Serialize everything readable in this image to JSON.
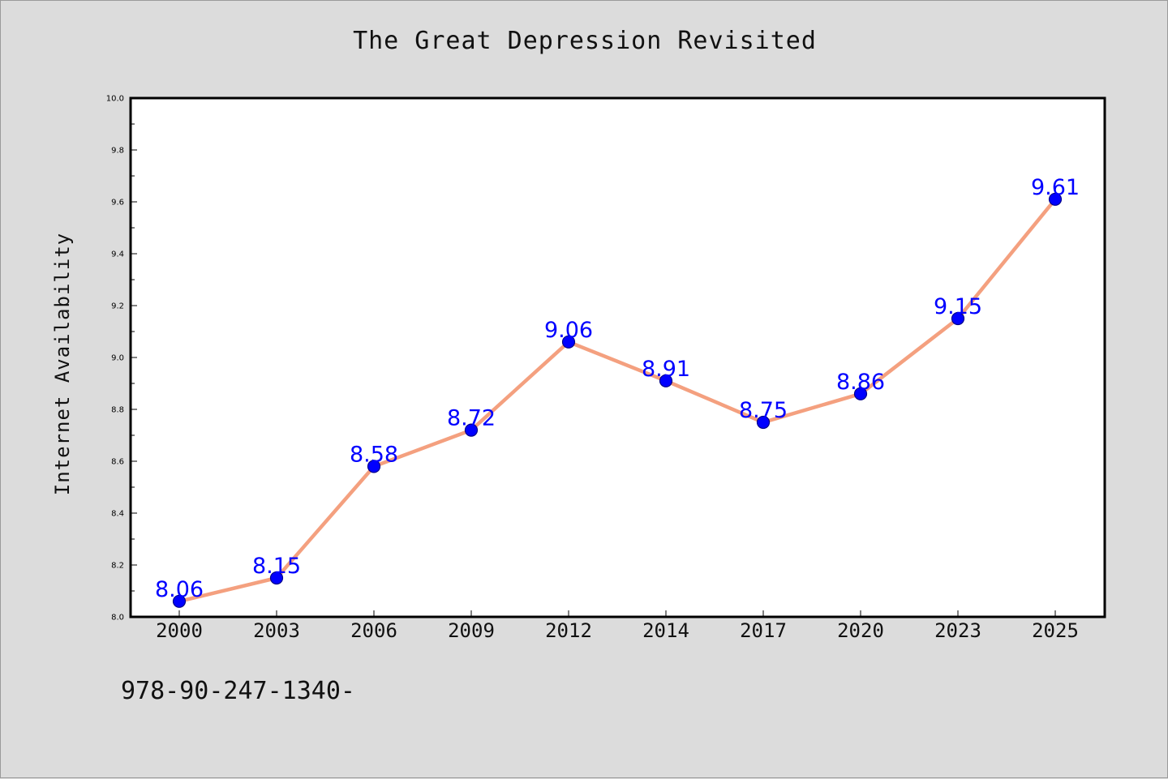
{
  "chart_data": {
    "type": "line",
    "title": "The Great Depression Revisited",
    "xlabel": "",
    "ylabel": "Internet Availability",
    "categories": [
      "2000",
      "2003",
      "2006",
      "2009",
      "2012",
      "2014",
      "2017",
      "2020",
      "2023",
      "2025"
    ],
    "series": [
      {
        "values": [
          8.06,
          8.15,
          8.58,
          8.72,
          9.06,
          8.91,
          8.75,
          8.86,
          9.15,
          9.61
        ]
      }
    ],
    "data_labels": [
      "8.06",
      "8.15",
      "8.58",
      "8.72",
      "9.06",
      "8.91",
      "8.75",
      "8.86",
      "9.15",
      "9.61"
    ],
    "ylim": [
      8.0,
      10.0
    ],
    "yticks": [
      "8.0",
      "8.2",
      "8.4",
      "8.6",
      "8.8",
      "9.0",
      "9.2",
      "9.4",
      "9.6",
      "9.8",
      "10.0"
    ],
    "grid": false,
    "colors": {
      "line": "#f4a07f",
      "marker": "#0000ff",
      "marker_edge": "#00008b",
      "data_label": "#0000ff",
      "background": "#dcdcdc",
      "plot_area": "#ffffff"
    }
  },
  "footer_text": "978-90-247-1340-"
}
